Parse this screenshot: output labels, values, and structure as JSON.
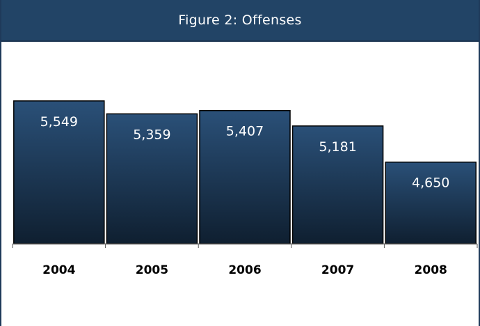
{
  "chart_data": {
    "type": "bar",
    "title": "Figure 2: Offenses",
    "categories": [
      "2004",
      "2005",
      "2006",
      "2007",
      "2008"
    ],
    "values": [
      5549,
      5359,
      5407,
      5181,
      4650
    ],
    "value_labels": [
      "5,549",
      "5,359",
      "5,407",
      "5,181",
      "4,650"
    ],
    "xlabel": "",
    "ylabel": "",
    "ylim": [
      3450,
      5650
    ],
    "grid": false,
    "legend": "none",
    "colors": {
      "bar_top": "#2a5078",
      "bar_bottom": "#0f1f30",
      "bar_outline": "#000000",
      "label_inside": "#ffffff",
      "tick_label": "#000000",
      "header_bg": "#224466"
    }
  }
}
